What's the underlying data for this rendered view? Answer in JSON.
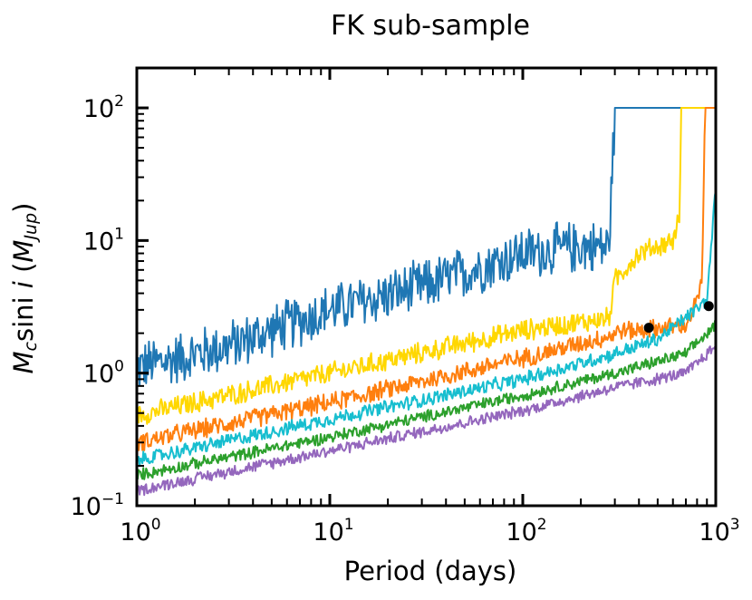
{
  "chart_data": {
    "type": "line",
    "title": "FK sub-sample",
    "xlabel": "Period (days)",
    "ylabel": {
      "base": "M",
      "sub": "c",
      "mid": "sini ",
      "italic": "i",
      "paren_open": " (",
      "mbase": "M",
      "msub": "Jup",
      "paren_close": ")"
    },
    "xscale": "log",
    "yscale": "log",
    "xlim": [
      1,
      1000
    ],
    "ylim": [
      0.1,
      200
    ],
    "x_ticks": [
      {
        "value": 1,
        "base": "10",
        "exp": "0"
      },
      {
        "value": 10,
        "base": "10",
        "exp": "1"
      },
      {
        "value": 100,
        "base": "10",
        "exp": "2"
      },
      {
        "value": 1000,
        "base": "10",
        "exp": "3"
      }
    ],
    "y_ticks": [
      {
        "value": 0.1,
        "base": "10",
        "exp": "−1"
      },
      {
        "value": 1,
        "base": "10",
        "exp": "0"
      },
      {
        "value": 10,
        "base": "10",
        "exp": "1"
      },
      {
        "value": 100,
        "base": "10",
        "exp": "2"
      }
    ],
    "series": [
      {
        "name": "blue",
        "color": "#1f77b4",
        "noise": 0.22,
        "knots": [
          [
            1,
            1.1
          ],
          [
            3,
            1.6
          ],
          [
            10,
            3.0
          ],
          [
            30,
            4.5
          ],
          [
            100,
            8
          ],
          [
            200,
            9
          ],
          [
            280,
            9
          ],
          [
            300,
            100
          ],
          [
            1000,
            100
          ]
        ]
      },
      {
        "name": "gold",
        "color": "#ffd700",
        "noise": 0.09,
        "knots": [
          [
            1,
            0.48
          ],
          [
            10,
            1.0
          ],
          [
            100,
            2.1
          ],
          [
            280,
            2.6
          ],
          [
            300,
            5
          ],
          [
            400,
            8
          ],
          [
            600,
            10
          ],
          [
            650,
            15
          ],
          [
            660,
            100
          ],
          [
            1000,
            100
          ]
        ]
      },
      {
        "name": "orange",
        "color": "#ff7f0e",
        "noise": 0.08,
        "knots": [
          [
            1,
            0.3
          ],
          [
            10,
            0.6
          ],
          [
            100,
            1.3
          ],
          [
            280,
            1.9
          ],
          [
            320,
            2.1
          ],
          [
            400,
            2.1
          ],
          [
            700,
            2.3
          ],
          [
            800,
            3.5
          ],
          [
            850,
            5
          ],
          [
            880,
            100
          ],
          [
            1000,
            100
          ]
        ]
      },
      {
        "name": "cyan",
        "color": "#17becf",
        "noise": 0.06,
        "knots": [
          [
            1,
            0.22
          ],
          [
            10,
            0.45
          ],
          [
            100,
            0.9
          ],
          [
            300,
            1.4
          ],
          [
            500,
            1.8
          ],
          [
            900,
            3.5
          ],
          [
            1000,
            25
          ]
        ]
      },
      {
        "name": "green",
        "color": "#2ca02c",
        "noise": 0.05,
        "knots": [
          [
            1,
            0.17
          ],
          [
            10,
            0.33
          ],
          [
            100,
            0.68
          ],
          [
            300,
            1.0
          ],
          [
            700,
            1.4
          ],
          [
            1000,
            2.3
          ]
        ]
      },
      {
        "name": "purple",
        "color": "#9467bd",
        "noise": 0.05,
        "knots": [
          [
            1,
            0.13
          ],
          [
            10,
            0.26
          ],
          [
            100,
            0.52
          ],
          [
            300,
            0.78
          ],
          [
            700,
            1.0
          ],
          [
            1000,
            1.6
          ]
        ]
      }
    ],
    "points": [
      {
        "name": "planet-1",
        "x": 450,
        "y": 2.2,
        "color": "#000000"
      },
      {
        "name": "planet-2",
        "x": 920,
        "y": 3.2,
        "color": "#000000"
      }
    ]
  }
}
